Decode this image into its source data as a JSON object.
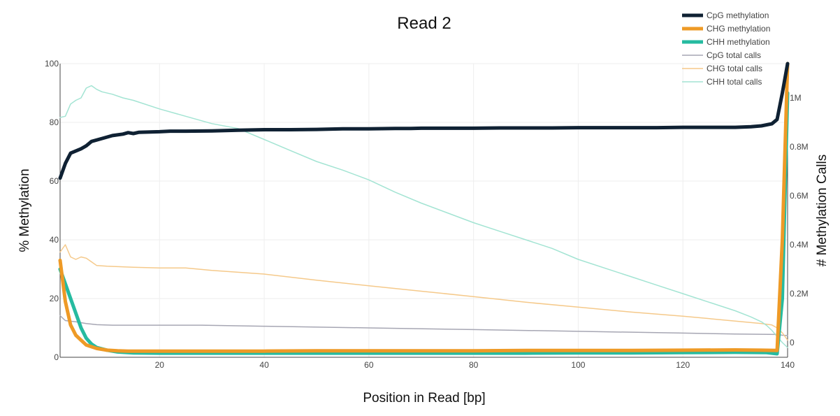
{
  "chart_data": {
    "type": "line",
    "title": "Read 2",
    "xlabel": "Position in Read [bp]",
    "ylabel": "% Methylation",
    "y2label": "# Methylation Calls",
    "xlim": [
      1,
      140
    ],
    "ylim": [
      0,
      100
    ],
    "y2lim": [
      -60000,
      1140000
    ],
    "xticks": [
      20,
      40,
      60,
      80,
      100,
      120,
      140
    ],
    "yticks": [
      0,
      20,
      40,
      60,
      80,
      100
    ],
    "y2ticks": [
      {
        "value": 0,
        "label": "0"
      },
      {
        "value": 200000,
        "label": "0.2M"
      },
      {
        "value": 400000,
        "label": "0.4M"
      },
      {
        "value": 600000,
        "label": "0.6M"
      },
      {
        "value": 800000,
        "label": "0.8M"
      },
      {
        "value": 1000000,
        "label": "1M"
      }
    ],
    "grid": true,
    "legend_position": "top-right",
    "series": [
      {
        "name": "CpG methylation",
        "axis": "left",
        "color": "#0f2133",
        "style": "thick",
        "points": [
          [
            1,
            61
          ],
          [
            2,
            66
          ],
          [
            3,
            69.5
          ],
          [
            5,
            71
          ],
          [
            6,
            72
          ],
          [
            7,
            73.5
          ],
          [
            9,
            74.5
          ],
          [
            11,
            75.5
          ],
          [
            13,
            76
          ],
          [
            14,
            76.5
          ],
          [
            15,
            76.2
          ],
          [
            16,
            76.6
          ],
          [
            20,
            76.8
          ],
          [
            22,
            77
          ],
          [
            25,
            77
          ],
          [
            30,
            77.1
          ],
          [
            35,
            77.3
          ],
          [
            40,
            77.5
          ],
          [
            45,
            77.5
          ],
          [
            50,
            77.6
          ],
          [
            55,
            77.8
          ],
          [
            60,
            77.8
          ],
          [
            65,
            77.9
          ],
          [
            68,
            77.9
          ],
          [
            70,
            78
          ],
          [
            75,
            78
          ],
          [
            80,
            78
          ],
          [
            85,
            78.1
          ],
          [
            90,
            78.1
          ],
          [
            95,
            78.1
          ],
          [
            100,
            78.2
          ],
          [
            105,
            78.2
          ],
          [
            110,
            78.2
          ],
          [
            115,
            78.2
          ],
          [
            120,
            78.3
          ],
          [
            125,
            78.3
          ],
          [
            130,
            78.3
          ],
          [
            133,
            78.5
          ],
          [
            135,
            78.8
          ],
          [
            137,
            79.5
          ],
          [
            138,
            81
          ],
          [
            139,
            90
          ],
          [
            140,
            100
          ]
        ]
      },
      {
        "name": "CHG methylation",
        "axis": "left",
        "color": "#ee9a26",
        "style": "thick",
        "points": [
          [
            1,
            33
          ],
          [
            2,
            19
          ],
          [
            3,
            11
          ],
          [
            4,
            7.5
          ],
          [
            6,
            4.2
          ],
          [
            8,
            3
          ],
          [
            10,
            2.4
          ],
          [
            12,
            2.2
          ],
          [
            14,
            2.1
          ],
          [
            20,
            2.1
          ],
          [
            30,
            2.1
          ],
          [
            40,
            2.1
          ],
          [
            50,
            2.2
          ],
          [
            60,
            2.2
          ],
          [
            70,
            2.2
          ],
          [
            80,
            2.2
          ],
          [
            90,
            2.3
          ],
          [
            100,
            2.3
          ],
          [
            110,
            2.3
          ],
          [
            120,
            2.4
          ],
          [
            130,
            2.5
          ],
          [
            135,
            2.4
          ],
          [
            138,
            2.3
          ],
          [
            139,
            40
          ],
          [
            140,
            100
          ]
        ]
      },
      {
        "name": "CHH methylation",
        "axis": "left",
        "color": "#26bba0",
        "style": "thick",
        "points": [
          [
            1,
            30
          ],
          [
            2,
            25
          ],
          [
            3,
            20
          ],
          [
            4,
            15
          ],
          [
            5,
            10
          ],
          [
            6,
            6.5
          ],
          [
            7,
            4.5
          ],
          [
            8,
            3.3
          ],
          [
            10,
            2.4
          ],
          [
            12,
            1.8
          ],
          [
            15,
            1.5
          ],
          [
            20,
            1.4
          ],
          [
            30,
            1.4
          ],
          [
            40,
            1.4
          ],
          [
            50,
            1.4
          ],
          [
            60,
            1.4
          ],
          [
            70,
            1.4
          ],
          [
            80,
            1.4
          ],
          [
            90,
            1.4
          ],
          [
            100,
            1.5
          ],
          [
            110,
            1.5
          ],
          [
            120,
            1.6
          ],
          [
            130,
            1.7
          ],
          [
            136,
            1.6
          ],
          [
            138,
            1.2
          ],
          [
            139,
            20
          ],
          [
            140,
            90
          ]
        ]
      },
      {
        "name": "CpG total calls",
        "axis": "right",
        "color": "#a6a6b3",
        "style": "thin",
        "points": [
          [
            1,
            110000
          ],
          [
            2,
            90000
          ],
          [
            4,
            85000
          ],
          [
            6,
            78000
          ],
          [
            8,
            73000
          ],
          [
            11,
            71000
          ],
          [
            20,
            71000
          ],
          [
            28,
            71000
          ],
          [
            40,
            67000
          ],
          [
            60,
            60000
          ],
          [
            80,
            53000
          ],
          [
            100,
            46000
          ],
          [
            120,
            39000
          ],
          [
            130,
            35000
          ],
          [
            138,
            33000
          ],
          [
            139,
            30000
          ],
          [
            140,
            29000
          ]
        ]
      },
      {
        "name": "CHG total calls",
        "axis": "right",
        "color": "#f5c98a",
        "style": "thin",
        "points": [
          [
            1,
            370000
          ],
          [
            2,
            400000
          ],
          [
            3,
            350000
          ],
          [
            4,
            340000
          ],
          [
            5,
            350000
          ],
          [
            6,
            345000
          ],
          [
            7,
            330000
          ],
          [
            8,
            315000
          ],
          [
            10,
            312000
          ],
          [
            15,
            308000
          ],
          [
            20,
            305000
          ],
          [
            25,
            305000
          ],
          [
            30,
            295000
          ],
          [
            40,
            280000
          ],
          [
            50,
            255000
          ],
          [
            60,
            232000
          ],
          [
            70,
            210000
          ],
          [
            80,
            188000
          ],
          [
            90,
            165000
          ],
          [
            100,
            145000
          ],
          [
            110,
            125000
          ],
          [
            120,
            108000
          ],
          [
            130,
            88000
          ],
          [
            135,
            78000
          ],
          [
            137,
            72000
          ],
          [
            138,
            60000
          ],
          [
            139,
            40000
          ],
          [
            140,
            10000
          ]
        ]
      },
      {
        "name": "CHH total calls",
        "axis": "right",
        "color": "#a3e4d3",
        "style": "thin",
        "points": [
          [
            1,
            920000
          ],
          [
            2,
            925000
          ],
          [
            3,
            975000
          ],
          [
            4,
            990000
          ],
          [
            5,
            1000000
          ],
          [
            6,
            1040000
          ],
          [
            7,
            1050000
          ],
          [
            8,
            1035000
          ],
          [
            9,
            1025000
          ],
          [
            11,
            1015000
          ],
          [
            13,
            1000000
          ],
          [
            15,
            990000
          ],
          [
            20,
            955000
          ],
          [
            25,
            925000
          ],
          [
            30,
            895000
          ],
          [
            35,
            875000
          ],
          [
            40,
            830000
          ],
          [
            45,
            785000
          ],
          [
            50,
            740000
          ],
          [
            55,
            705000
          ],
          [
            60,
            665000
          ],
          [
            65,
            615000
          ],
          [
            70,
            570000
          ],
          [
            75,
            530000
          ],
          [
            80,
            490000
          ],
          [
            85,
            455000
          ],
          [
            90,
            420000
          ],
          [
            95,
            385000
          ],
          [
            100,
            340000
          ],
          [
            105,
            305000
          ],
          [
            110,
            270000
          ],
          [
            115,
            235000
          ],
          [
            120,
            200000
          ],
          [
            125,
            165000
          ],
          [
            130,
            130000
          ],
          [
            133,
            105000
          ],
          [
            135,
            85000
          ],
          [
            136,
            70000
          ],
          [
            137,
            50000
          ],
          [
            138,
            25000
          ],
          [
            139,
            0
          ],
          [
            140,
            -20000
          ]
        ]
      }
    ]
  }
}
